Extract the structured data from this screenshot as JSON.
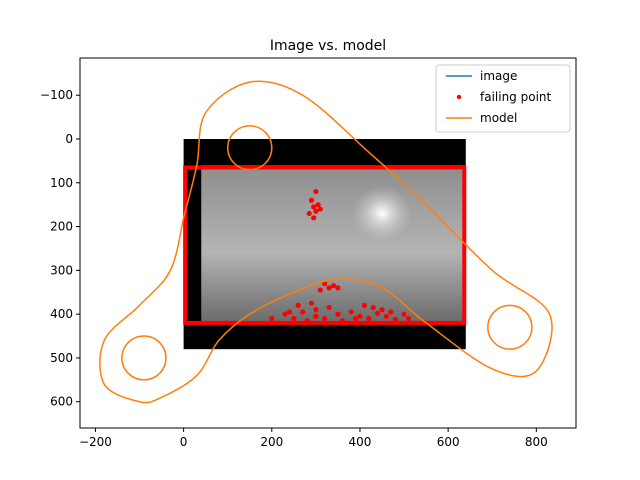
{
  "chart_data": {
    "type": "line",
    "title": "Image vs. model",
    "xlabel": "",
    "ylabel": "",
    "xlim": [
      -235,
      890
    ],
    "ylim": [
      660,
      -185
    ],
    "y_inverted": true,
    "grid": false,
    "legend_placement": "top-right",
    "x_ticks": [
      -200,
      0,
      200,
      400,
      600,
      800
    ],
    "y_ticks": [
      -100,
      0,
      100,
      200,
      300,
      400,
      500,
      600
    ],
    "image_extent": {
      "x0": 0,
      "x1": 640,
      "y0": 0,
      "y1": 480
    },
    "photo_extent": {
      "x0": 40,
      "x1": 640,
      "y0": 60,
      "y1": 420
    },
    "legend": [
      {
        "label": "image",
        "color": "#1f77b4",
        "marker": "line"
      },
      {
        "label": "failing point",
        "color": "#ff0000",
        "marker": "dot"
      },
      {
        "label": "model",
        "color": "#ff7f0e",
        "marker": "line"
      }
    ],
    "series": [
      {
        "name": "model",
        "color": "#ff7f0e",
        "circles": [
          {
            "cx": 150,
            "cy": 20,
            "r": 50
          },
          {
            "cx": -90,
            "cy": 500,
            "r": 50
          },
          {
            "cx": 740,
            "cy": 430,
            "r": 50
          }
        ],
        "outline": [
          [
            0,
            180
          ],
          [
            30,
            60
          ],
          [
            50,
            -60
          ],
          [
            150,
            -130
          ],
          [
            270,
            -100
          ],
          [
            420,
            30
          ],
          [
            550,
            150
          ],
          [
            700,
            300
          ],
          [
            830,
            400
          ],
          [
            800,
            530
          ],
          [
            700,
            525
          ],
          [
            550,
            420
          ],
          [
            450,
            340
          ],
          [
            350,
            320
          ],
          [
            250,
            350
          ],
          [
            150,
            400
          ],
          [
            80,
            460
          ],
          [
            30,
            540
          ],
          [
            -50,
            590
          ],
          [
            -100,
            600
          ],
          [
            -180,
            560
          ],
          [
            -180,
            460
          ],
          [
            -100,
            380
          ],
          [
            -30,
            300
          ],
          [
            0,
            180
          ]
        ]
      },
      {
        "name": "failing point",
        "color": "#ff0000",
        "frame": {
          "x0": 0,
          "x1": 640,
          "y0": 65,
          "y1": 420
        },
        "points": [
          [
            290,
            140
          ],
          [
            295,
            155
          ],
          [
            300,
            165
          ],
          [
            285,
            170
          ],
          [
            305,
            150
          ],
          [
            310,
            160
          ],
          [
            300,
            120
          ],
          [
            295,
            180
          ],
          [
            320,
            330
          ],
          [
            330,
            340
          ],
          [
            340,
            335
          ],
          [
            310,
            345
          ],
          [
            350,
            340
          ],
          [
            230,
            400
          ],
          [
            250,
            410
          ],
          [
            270,
            395
          ],
          [
            280,
            415
          ],
          [
            300,
            405
          ],
          [
            320,
            410
          ],
          [
            350,
            400
          ],
          [
            360,
            415
          ],
          [
            380,
            395
          ],
          [
            400,
            405
          ],
          [
            420,
            410
          ],
          [
            440,
            398
          ],
          [
            460,
            405
          ],
          [
            480,
            412
          ],
          [
            500,
            400
          ],
          [
            510,
            410
          ],
          [
            200,
            410
          ],
          [
            260,
            380
          ],
          [
            290,
            375
          ],
          [
            300,
            390
          ],
          [
            330,
            385
          ],
          [
            410,
            380
          ],
          [
            430,
            385
          ],
          [
            450,
            390
          ],
          [
            390,
            410
          ],
          [
            240,
            395
          ],
          [
            470,
            395
          ]
        ]
      }
    ]
  }
}
